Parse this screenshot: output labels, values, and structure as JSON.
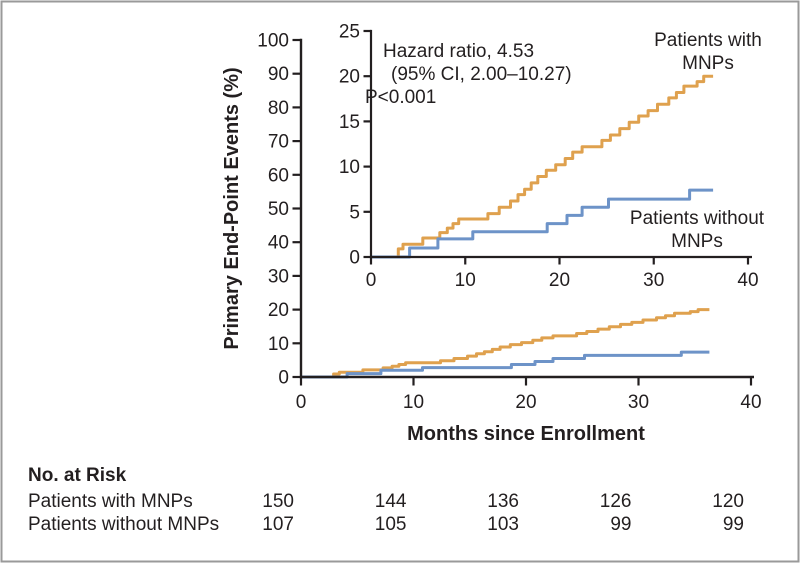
{
  "figure": {
    "background": "#ffffff",
    "border_color": "#9a9a9a",
    "ink_color": "#231f20"
  },
  "chart_data": {
    "type": "line",
    "subtype": "kaplan-meier-step",
    "title": "",
    "xlabel": "Months since Enrollment",
    "ylabel": "Primary End-Point Events (%)",
    "legend_position": "inline-curve-labels",
    "grid": false,
    "main_axes": {
      "xlim": [
        0,
        40
      ],
      "ylim": [
        0,
        100
      ],
      "x_ticks": [
        0,
        10,
        20,
        30,
        40
      ],
      "y_ticks": [
        0,
        10,
        20,
        30,
        40,
        50,
        60,
        70,
        80,
        90,
        100
      ]
    },
    "inset_axes": {
      "xlim": [
        0,
        40
      ],
      "ylim": [
        0,
        25
      ],
      "x_ticks": [
        0,
        10,
        20,
        30,
        40
      ],
      "y_ticks": [
        0,
        5,
        10,
        15,
        20,
        25
      ]
    },
    "annotation_lines": [
      "Hazard ratio, 4.53",
      "(95% CI, 2.00–10.27)",
      "P<0.001"
    ],
    "series": [
      {
        "name": "Patients with MNPs",
        "label_lines": [
          "Patients with",
          "MNPs"
        ],
        "color": "#DFA14E",
        "points": [
          [
            0,
            0
          ],
          [
            2.9,
            0.9
          ],
          [
            3.4,
            1.4
          ],
          [
            5.5,
            2.1
          ],
          [
            7.3,
            2.7
          ],
          [
            8.1,
            3.2
          ],
          [
            8.7,
            3.7
          ],
          [
            9.3,
            4.2
          ],
          [
            12.4,
            4.8
          ],
          [
            13.6,
            5.5
          ],
          [
            14.8,
            6.2
          ],
          [
            15.6,
            6.9
          ],
          [
            16.3,
            7.5
          ],
          [
            17.0,
            8.2
          ],
          [
            17.7,
            8.9
          ],
          [
            18.6,
            9.6
          ],
          [
            19.6,
            10.2
          ],
          [
            20.6,
            10.9
          ],
          [
            21.4,
            11.6
          ],
          [
            22.4,
            12.2
          ],
          [
            24.5,
            12.9
          ],
          [
            25.4,
            13.5
          ],
          [
            26.4,
            14.2
          ],
          [
            27.4,
            14.9
          ],
          [
            28.4,
            15.6
          ],
          [
            29.4,
            16.2
          ],
          [
            30.4,
            16.9
          ],
          [
            31.6,
            17.6
          ],
          [
            32.4,
            18.2
          ],
          [
            33.2,
            18.9
          ],
          [
            34.6,
            19.4
          ],
          [
            35.3,
            20.0
          ],
          [
            36.3,
            20.0
          ]
        ]
      },
      {
        "name": "Patients without MNPs",
        "label_lines": [
          "Patients without",
          "MNPs"
        ],
        "color": "#6D93C8",
        "points": [
          [
            0,
            0
          ],
          [
            4.1,
            1.0
          ],
          [
            7.1,
            2.0
          ],
          [
            10.8,
            2.8
          ],
          [
            18.7,
            3.7
          ],
          [
            20.8,
            4.6
          ],
          [
            22.4,
            5.5
          ],
          [
            25.2,
            6.4
          ],
          [
            33.8,
            7.4
          ],
          [
            36.3,
            7.4
          ]
        ]
      }
    ]
  },
  "risk_table": {
    "title": "No. at Risk",
    "rows": [
      {
        "label": "Patients with MNPs",
        "values": [
          "150",
          "144",
          "136",
          "126",
          "120"
        ]
      },
      {
        "label": "Patients without MNPs",
        "values": [
          "107",
          "105",
          "103",
          "99",
          "99"
        ]
      }
    ]
  }
}
